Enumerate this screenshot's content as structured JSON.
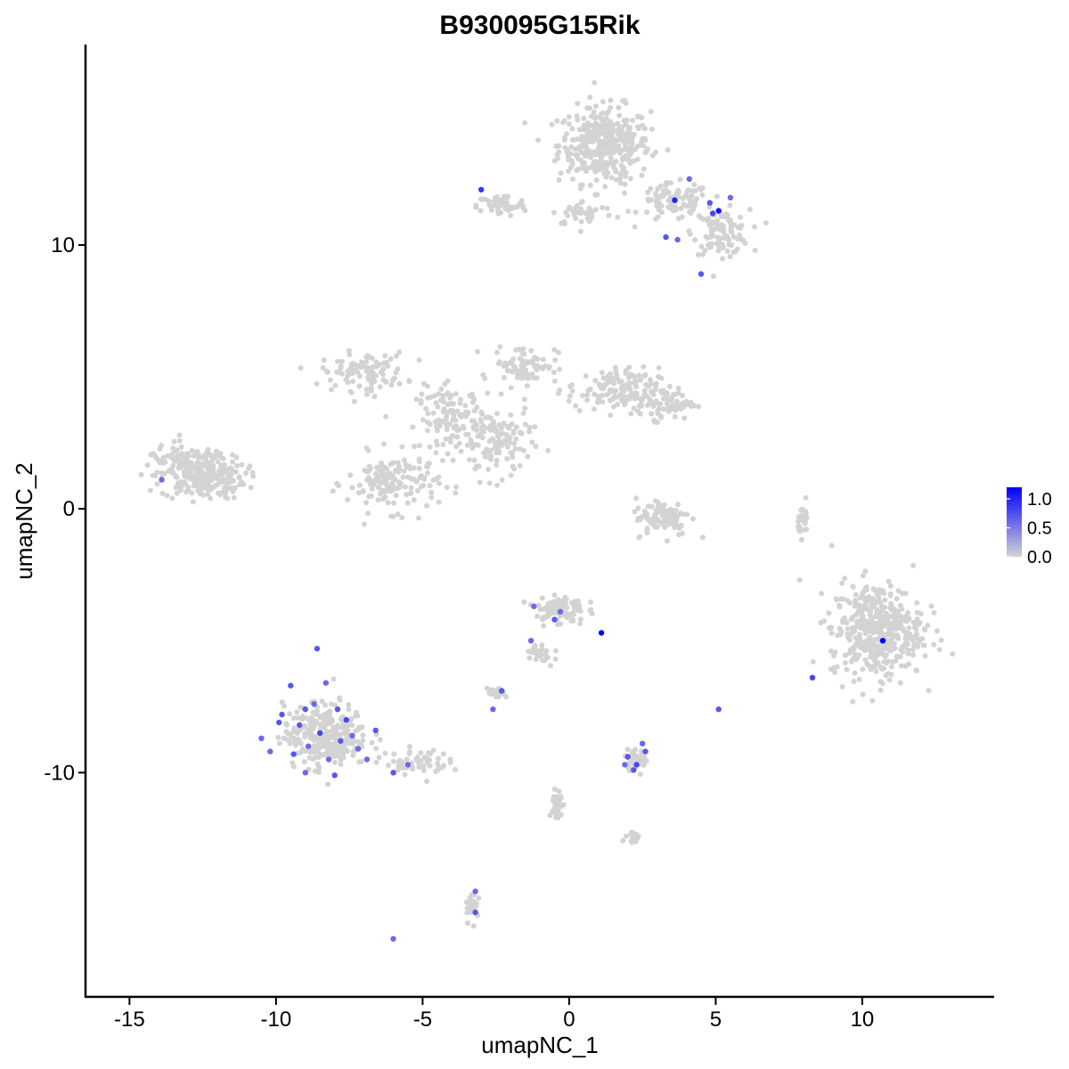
{
  "chart_data": {
    "type": "scatter",
    "title": "B930095G15Rik",
    "xlabel": "umapNC_1",
    "ylabel": "umapNC_2",
    "xlim": [
      -16.5,
      14.5
    ],
    "ylim": [
      -18.5,
      17.6
    ],
    "x_ticks": [
      -15,
      -10,
      -5,
      0,
      5,
      10
    ],
    "x_tick_labels": [
      "-15",
      "-10",
      "-5",
      "0",
      "5",
      "10"
    ],
    "y_ticks": [
      -10,
      0,
      10
    ],
    "y_tick_labels": [
      "-10",
      "0",
      "10"
    ],
    "grid": false,
    "legend_position": "right",
    "color_scale": {
      "low_color": "#d3d3d3",
      "high_color": "#0000ff",
      "min": 0.0,
      "max": 1.2,
      "ticks": [
        0.0,
        0.5,
        1.0
      ],
      "tick_labels": [
        "0.0",
        "0.5",
        "1.0"
      ]
    },
    "clusters": [
      {
        "center": [
          1.2,
          13.8
        ],
        "spread": [
          1.3,
          1.2
        ],
        "n": 380
      },
      {
        "center": [
          3.6,
          11.6
        ],
        "spread": [
          1.0,
          0.6
        ],
        "n": 90
      },
      {
        "center": [
          5.2,
          10.5
        ],
        "spread": [
          0.8,
          0.7
        ],
        "n": 110
      },
      {
        "center": [
          -2.3,
          11.5
        ],
        "spread": [
          0.7,
          0.35
        ],
        "n": 60
      },
      {
        "center": [
          0.5,
          11.2
        ],
        "spread": [
          0.9,
          0.4
        ],
        "n": 40
      },
      {
        "center": [
          -12.5,
          1.2
        ],
        "spread": [
          1.2,
          0.7
        ],
        "n": 230
      },
      {
        "center": [
          -7.0,
          5.2
        ],
        "spread": [
          1.2,
          0.6
        ],
        "n": 100
      },
      {
        "center": [
          -4.0,
          3.4
        ],
        "spread": [
          1.0,
          1.0
        ],
        "n": 120
      },
      {
        "center": [
          -6.0,
          1.0
        ],
        "spread": [
          1.3,
          0.9
        ],
        "n": 150
      },
      {
        "center": [
          -2.5,
          2.5
        ],
        "spread": [
          1.0,
          1.2
        ],
        "n": 120
      },
      {
        "center": [
          -1.5,
          5.5
        ],
        "spread": [
          0.9,
          0.6
        ],
        "n": 80
      },
      {
        "center": [
          1.5,
          4.5
        ],
        "spread": [
          1.3,
          0.7
        ],
        "n": 130
      },
      {
        "center": [
          3.2,
          4.0
        ],
        "spread": [
          0.9,
          0.5
        ],
        "n": 80
      },
      {
        "center": [
          3.2,
          -0.3
        ],
        "spread": [
          0.8,
          0.6
        ],
        "n": 100
      },
      {
        "center": [
          10.5,
          -4.6
        ],
        "spread": [
          1.3,
          1.5
        ],
        "n": 430
      },
      {
        "center": [
          -8.3,
          -8.6
        ],
        "spread": [
          1.2,
          1.0
        ],
        "n": 280
      },
      {
        "center": [
          -5.2,
          -9.6
        ],
        "spread": [
          0.9,
          0.4
        ],
        "n": 60
      },
      {
        "center": [
          -0.3,
          -3.8
        ],
        "spread": [
          0.7,
          0.5
        ],
        "n": 90
      },
      {
        "center": [
          2.3,
          -9.5
        ],
        "spread": [
          0.35,
          0.3
        ],
        "n": 45
      },
      {
        "center": [
          -2.5,
          -7.0
        ],
        "spread": [
          0.25,
          0.15
        ],
        "n": 25
      },
      {
        "center": [
          -0.4,
          -11.3
        ],
        "spread": [
          0.15,
          0.6
        ],
        "n": 35
      },
      {
        "center": [
          -3.3,
          -15.0
        ],
        "spread": [
          0.2,
          0.5
        ],
        "n": 30
      },
      {
        "center": [
          8.0,
          -0.4
        ],
        "spread": [
          0.15,
          0.5
        ],
        "n": 25
      },
      {
        "center": [
          2.2,
          -12.5
        ],
        "spread": [
          0.3,
          0.15
        ],
        "n": 20
      },
      {
        "center": [
          -13.0,
          1.8
        ],
        "spread": [
          1.2,
          0.5
        ],
        "n": 80
      },
      {
        "center": [
          -1.0,
          -5.5
        ],
        "spread": [
          0.4,
          0.5
        ],
        "n": 25
      }
    ],
    "highlighted_points": [
      {
        "x": -3.0,
        "y": 12.1,
        "value": 0.9
      },
      {
        "x": 3.6,
        "y": 11.7,
        "value": 1.0
      },
      {
        "x": 4.1,
        "y": 12.5,
        "value": 0.6
      },
      {
        "x": 4.8,
        "y": 11.6,
        "value": 0.7
      },
      {
        "x": 5.1,
        "y": 11.3,
        "value": 1.1
      },
      {
        "x": 5.5,
        "y": 11.8,
        "value": 0.6
      },
      {
        "x": 4.9,
        "y": 11.2,
        "value": 0.8
      },
      {
        "x": 3.3,
        "y": 10.3,
        "value": 0.7
      },
      {
        "x": 3.7,
        "y": 10.2,
        "value": 0.6
      },
      {
        "x": 4.5,
        "y": 8.9,
        "value": 0.7
      },
      {
        "x": -13.9,
        "y": 1.1,
        "value": 0.6
      },
      {
        "x": -1.2,
        "y": -3.7,
        "value": 0.6
      },
      {
        "x": -0.3,
        "y": -3.9,
        "value": 0.6
      },
      {
        "x": -0.5,
        "y": -4.2,
        "value": 0.7
      },
      {
        "x": 1.1,
        "y": -4.7,
        "value": 1.2
      },
      {
        "x": -1.3,
        "y": -5.0,
        "value": 0.6
      },
      {
        "x": -2.3,
        "y": -6.9,
        "value": 0.7
      },
      {
        "x": -2.6,
        "y": -7.6,
        "value": 0.6
      },
      {
        "x": 10.7,
        "y": -5.0,
        "value": 1.2
      },
      {
        "x": 8.3,
        "y": -6.4,
        "value": 0.8
      },
      {
        "x": 5.1,
        "y": -7.6,
        "value": 0.7
      },
      {
        "x": 2.0,
        "y": -9.4,
        "value": 0.7
      },
      {
        "x": 2.3,
        "y": -9.7,
        "value": 0.8
      },
      {
        "x": 2.6,
        "y": -9.2,
        "value": 0.7
      },
      {
        "x": 2.5,
        "y": -8.9,
        "value": 0.6
      },
      {
        "x": 2.2,
        "y": -9.9,
        "value": 0.7
      },
      {
        "x": 1.9,
        "y": -9.7,
        "value": 0.6
      },
      {
        "x": -9.5,
        "y": -6.7,
        "value": 0.7
      },
      {
        "x": -8.7,
        "y": -7.4,
        "value": 0.6
      },
      {
        "x": -9.8,
        "y": -7.8,
        "value": 0.7
      },
      {
        "x": -10.5,
        "y": -8.7,
        "value": 0.6
      },
      {
        "x": -9.2,
        "y": -8.2,
        "value": 0.7
      },
      {
        "x": -8.5,
        "y": -8.5,
        "value": 0.8
      },
      {
        "x": -8.9,
        "y": -9.0,
        "value": 0.6
      },
      {
        "x": -7.8,
        "y": -8.8,
        "value": 0.7
      },
      {
        "x": -7.2,
        "y": -9.1,
        "value": 0.6
      },
      {
        "x": -7.9,
        "y": -7.6,
        "value": 0.7
      },
      {
        "x": -8.2,
        "y": -9.5,
        "value": 0.6
      },
      {
        "x": -9.4,
        "y": -9.3,
        "value": 0.7
      },
      {
        "x": -10.2,
        "y": -9.2,
        "value": 0.6
      },
      {
        "x": -8.6,
        "y": -5.3,
        "value": 0.7
      },
      {
        "x": -7.6,
        "y": -8.0,
        "value": 0.8
      },
      {
        "x": -6.9,
        "y": -9.5,
        "value": 0.6
      },
      {
        "x": -6.0,
        "y": -10.0,
        "value": 0.7
      },
      {
        "x": -5.5,
        "y": -9.7,
        "value": 0.6
      },
      {
        "x": -8.0,
        "y": -10.1,
        "value": 0.7
      },
      {
        "x": -9.0,
        "y": -10.0,
        "value": 0.6
      },
      {
        "x": -6.6,
        "y": -8.4,
        "value": 0.7
      },
      {
        "x": -9.9,
        "y": -8.1,
        "value": 0.7
      },
      {
        "x": -8.3,
        "y": -6.6,
        "value": 0.6
      },
      {
        "x": -9.0,
        "y": -7.6,
        "value": 0.7
      },
      {
        "x": -7.4,
        "y": -8.6,
        "value": 0.6
      },
      {
        "x": -3.2,
        "y": -14.5,
        "value": 0.6
      },
      {
        "x": -3.2,
        "y": -15.3,
        "value": 0.7
      },
      {
        "x": -6.0,
        "y": -16.3,
        "value": 0.6
      }
    ]
  }
}
